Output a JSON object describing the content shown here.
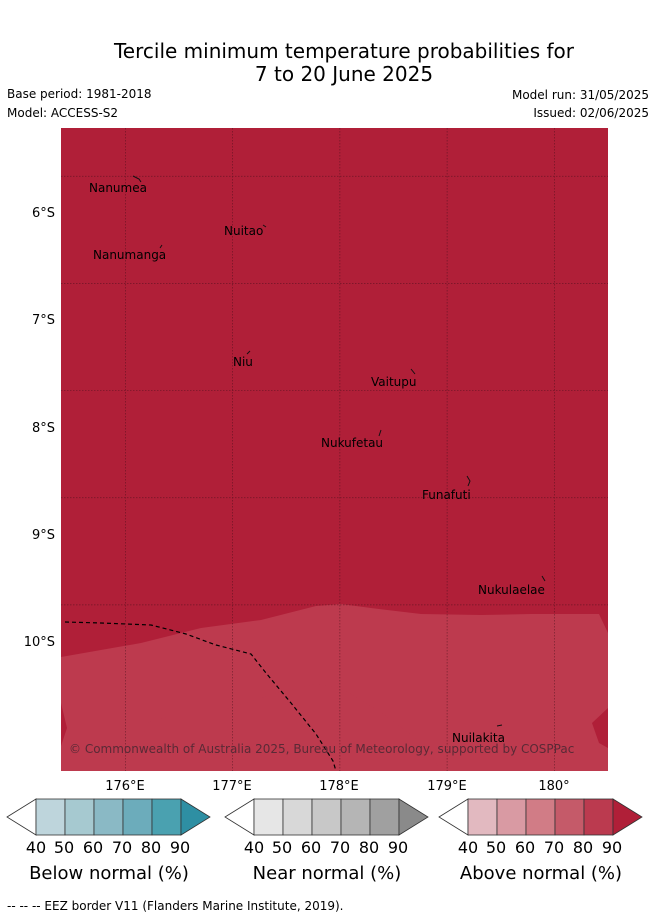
{
  "header": {
    "title_line1": "Tercile minimum temperature probabilities for",
    "title_line2": "7 to 20 June 2025",
    "base_period": "Base period: 1981-2018",
    "model": "Model: ACCESS-S2",
    "model_run": "Model run: 31/05/2025",
    "issued": "Issued: 02/06/2025"
  },
  "map": {
    "lon_range": [
      175.4,
      180.5
    ],
    "lat_range": [
      -11.55,
      -5.55
    ],
    "lat_ticks": [
      {
        "label": "6°S",
        "value": -6
      },
      {
        "label": "7°S",
        "value": -7
      },
      {
        "label": "8°S",
        "value": -8
      },
      {
        "label": "9°S",
        "value": -9
      },
      {
        "label": "10°S",
        "value": -10
      }
    ],
    "lon_ticks": [
      {
        "label": "176°E",
        "value": 176
      },
      {
        "label": "177°E",
        "value": 177
      },
      {
        "label": "178°E",
        "value": 178
      },
      {
        "label": "179°E",
        "value": 179
      },
      {
        "label": "180°",
        "value": 180
      }
    ],
    "places": [
      {
        "name": "Nanumea"
      },
      {
        "name": "Nuitao"
      },
      {
        "name": "Nanumanga"
      },
      {
        "name": "Niu"
      },
      {
        "name": "Vaitupu"
      },
      {
        "name": "Nukufetau"
      },
      {
        "name": "Funafuti"
      },
      {
        "name": "Nukulaelae"
      },
      {
        "name": "Nuilakita"
      }
    ],
    "copyright": "© Commonwealth of Australia 2025, Bureau of Meteorology, supported by COSPPac",
    "colors": {
      "above_90": "#b01f38",
      "above_80": "#bd3a4e"
    }
  },
  "legend": [
    {
      "title": "Below normal (%)",
      "ticks": [
        "40",
        "50",
        "60",
        "70",
        "80",
        "90"
      ],
      "colors": [
        "#ffffff",
        "#bed5dc",
        "#a6c9d0",
        "#8ab9c5",
        "#6cacbb",
        "#4aa1b0",
        "#2e8fa3"
      ]
    },
    {
      "title": "Near normal (%)",
      "ticks": [
        "40",
        "50",
        "60",
        "70",
        "80",
        "90"
      ],
      "colors": [
        "#ffffff",
        "#e6e6e6",
        "#d8d8d8",
        "#c8c8c8",
        "#b5b5b5",
        "#a0a0a0",
        "#8a8a8a"
      ]
    },
    {
      "title": "Above normal (%)",
      "ticks": [
        "40",
        "50",
        "60",
        "70",
        "80",
        "90"
      ],
      "colors": [
        "#ffffff",
        "#e2b9c0",
        "#d99aa3",
        "#d17c86",
        "#c55a69",
        "#bb3a4f",
        "#b01f38"
      ]
    }
  ],
  "footer": "--  --  -- EEZ border V11 (Flanders Marine Institute, 2019)."
}
